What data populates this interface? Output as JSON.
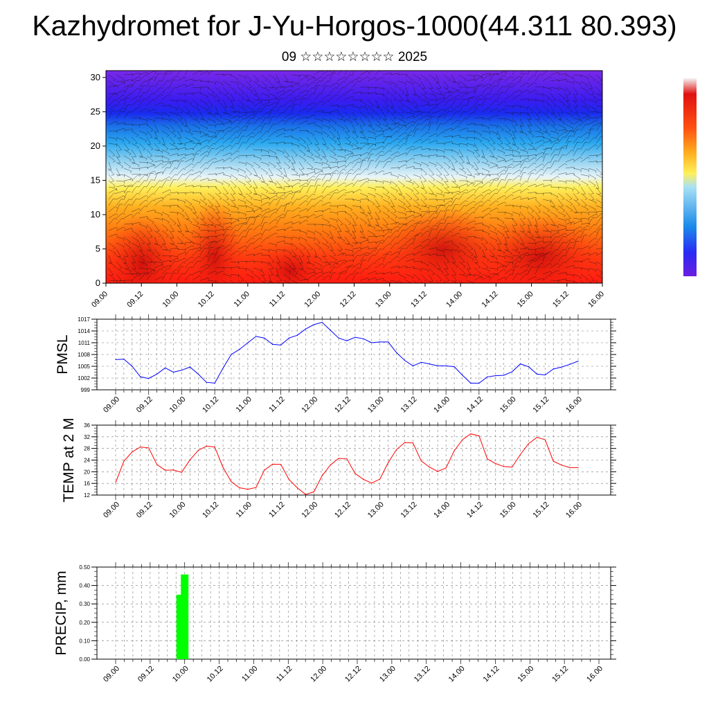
{
  "title": "Kazhydromet for J-Yu-Horgos-1000(44.311 80.393)",
  "subtitle": "09 ☆☆☆☆☆☆☆☆ 2025",
  "x_tick_labels": [
    "09.00",
    "09.12",
    "10.00",
    "10.12",
    "11.00",
    "11.12",
    "12.00",
    "12.12",
    "13.00",
    "13.12",
    "14.00",
    "14.12",
    "15.00",
    "15.12",
    "16.00"
  ],
  "chart_data": [
    {
      "type": "heatmap",
      "title": "",
      "ylim": [
        0,
        31
      ],
      "yticks": [
        0,
        5,
        10,
        15,
        20,
        25,
        30
      ],
      "colorbar": [
        "#6a1ee0",
        "#3a1cf0",
        "#2040ff",
        "#1a7ae8",
        "#28b4f0",
        "#a8dcf0",
        "#fff05a",
        "#ffc020",
        "#ff8010",
        "#ff3a10",
        "#e01010",
        "#ffffff"
      ],
      "overlay": "wind barbs"
    },
    {
      "type": "line",
      "ylabel": "PMSL",
      "ylim": [
        999,
        1017
      ],
      "yticks": [
        999,
        1002,
        1005,
        1008,
        1011,
        1014,
        1017
      ],
      "color": "#0000ff",
      "x": [
        0.0,
        0.25,
        0.5,
        0.75,
        1.0,
        1.25,
        1.5,
        1.75,
        2.0,
        2.25,
        2.5,
        2.75,
        3.0,
        3.25,
        3.5,
        3.75,
        4.0,
        4.25,
        4.5,
        4.75,
        5.0,
        5.25,
        5.5,
        5.75,
        6.0,
        6.25,
        6.5,
        6.75,
        7.0,
        7.25,
        7.5,
        7.75,
        8.0,
        8.25,
        8.5,
        8.75,
        9.0,
        9.25,
        9.5,
        9.75,
        10.0,
        10.25,
        10.5,
        10.75,
        11.0,
        11.25,
        11.5,
        11.75,
        12.0,
        12.25,
        12.5,
        12.75,
        13.0,
        13.25,
        13.5,
        13.75,
        14.0
      ],
      "values": [
        1006.7,
        1006.8,
        1005.0,
        1002.3,
        1001.9,
        1003.0,
        1004.6,
        1003.5,
        1004.0,
        1004.8,
        1003.0,
        1000.9,
        1000.7,
        1004.5,
        1008.0,
        1009.3,
        1011.0,
        1012.6,
        1012.2,
        1010.6,
        1010.4,
        1012.2,
        1012.9,
        1014.5,
        1015.6,
        1016.2,
        1014.2,
        1012.2,
        1011.5,
        1012.4,
        1012.0,
        1011.0,
        1011.2,
        1011.2,
        1008.5,
        1006.5,
        1005.1,
        1006.0,
        1005.6,
        1005.1,
        1005.1,
        1004.9,
        1002.7,
        1000.7,
        1000.7,
        1002.3,
        1002.6,
        1002.7,
        1003.6,
        1005.6,
        1004.9,
        1003.0,
        1002.8,
        1004.3,
        1004.8,
        1005.5,
        1006.3
      ]
    },
    {
      "type": "line",
      "ylabel": "TEMP at 2 M",
      "ylim": [
        12,
        36
      ],
      "yticks": [
        12,
        16,
        20,
        24,
        28,
        32,
        36
      ],
      "color": "#ff0000",
      "x": [
        0.0,
        0.25,
        0.5,
        0.75,
        1.0,
        1.25,
        1.5,
        1.75,
        2.0,
        2.25,
        2.5,
        2.75,
        3.0,
        3.25,
        3.5,
        3.75,
        4.0,
        4.25,
        4.5,
        4.75,
        5.0,
        5.25,
        5.5,
        5.75,
        6.0,
        6.25,
        6.5,
        6.75,
        7.0,
        7.25,
        7.5,
        7.75,
        8.0,
        8.25,
        8.5,
        8.75,
        9.0,
        9.25,
        9.5,
        9.75,
        10.0,
        10.25,
        10.5,
        10.75,
        11.0,
        11.25,
        11.5,
        11.75,
        12.0,
        12.25,
        12.5,
        12.75,
        13.0,
        13.25,
        13.5,
        13.75,
        14.0
      ],
      "values": [
        16.3,
        23.6,
        26.8,
        28.5,
        28.2,
        22.5,
        20.5,
        20.6,
        19.8,
        24.1,
        27.3,
        28.8,
        28.5,
        21.5,
        16.6,
        14.5,
        14.0,
        14.6,
        20.5,
        22.6,
        22.5,
        17.3,
        14.5,
        12.2,
        13.1,
        18.6,
        22.3,
        24.6,
        24.4,
        19.4,
        17.4,
        16.1,
        17.5,
        23.1,
        27.6,
        30.0,
        29.9,
        23.7,
        21.6,
        20.1,
        21.3,
        27.2,
        31.0,
        33.0,
        32.3,
        24.4,
        22.8,
        21.8,
        21.6,
        25.9,
        29.6,
        31.8,
        31.0,
        23.6,
        22.3,
        21.4,
        21.4
      ]
    },
    {
      "type": "bar",
      "ylabel": "PRECIP, mm",
      "ylim": [
        0,
        0.5
      ],
      "yticks": [
        "0.00",
        "0.10",
        "0.20",
        "0.30",
        "0.40",
        "0.50"
      ],
      "color": "#00ff00",
      "x": [
        1.87,
        2.0
      ],
      "values": [
        0.35,
        0.46
      ]
    }
  ]
}
